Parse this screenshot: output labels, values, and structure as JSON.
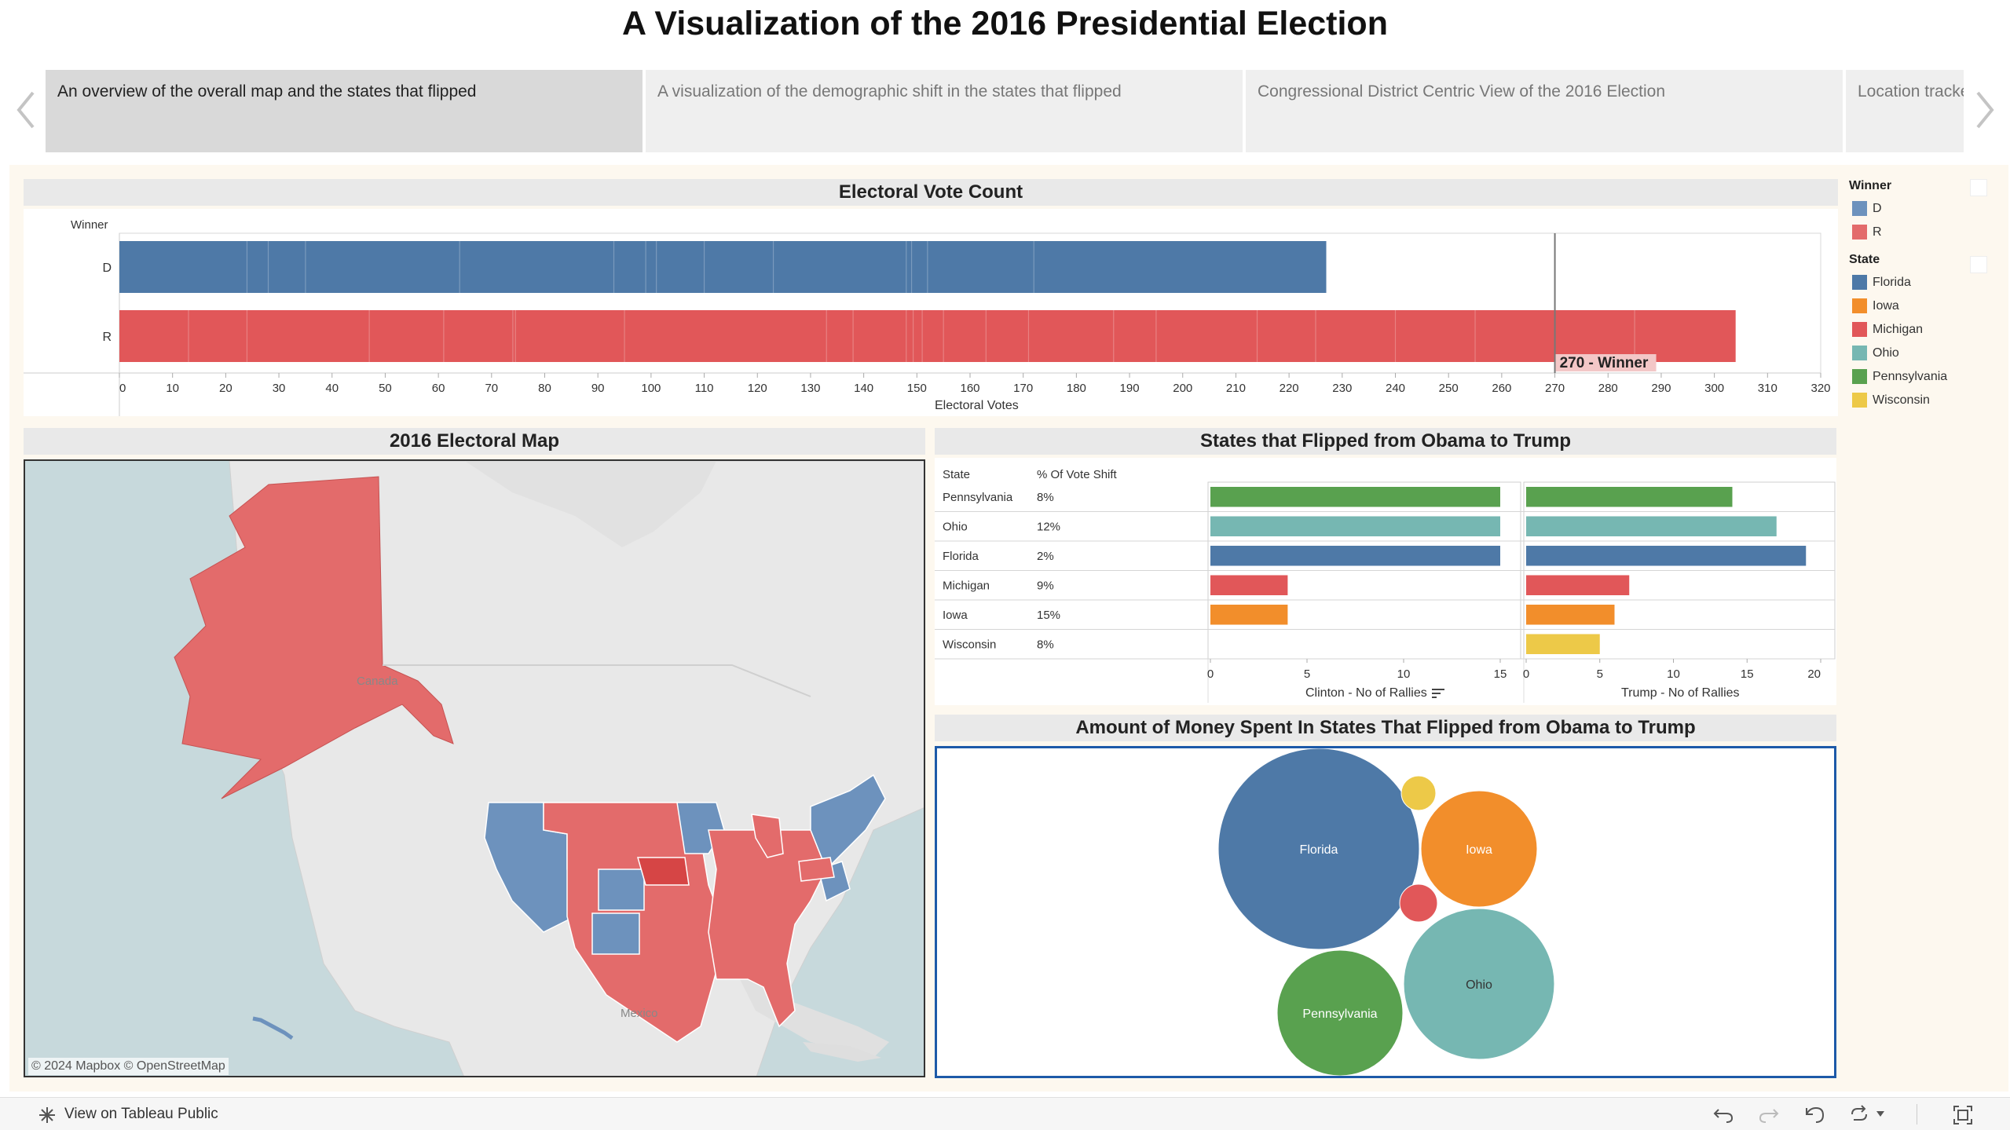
{
  "title": "A Visualization of the 2016 Presidential Election",
  "story_tabs": [
    {
      "label": "An overview of the overall map and the states that flipped",
      "active": true
    },
    {
      "label": "A visualization of the demographic shift in the states that flipped",
      "active": false
    },
    {
      "label": "Congressional District Centric View of the 2016 Election",
      "active": false
    },
    {
      "label": "Location tracker",
      "active": false
    }
  ],
  "colors": {
    "D": "#4e79a7",
    "R": "#e15759",
    "D_light": "#6d92bd",
    "R_light": "#e36b6b",
    "Florida": "#4e79a7",
    "Iowa": "#f28e2b",
    "Michigan": "#e15759",
    "Ohio": "#76b7b2",
    "Pennsylvania": "#59a14f",
    "Wisconsin": "#edc948"
  },
  "legend": {
    "winner_title": "Winner",
    "winner_items": [
      "D",
      "R"
    ],
    "state_title": "State",
    "state_items": [
      "Florida",
      "Iowa",
      "Michigan",
      "Ohio",
      "Pennsylvania",
      "Wisconsin"
    ]
  },
  "electoral_chart": {
    "title": "Electoral Vote Count",
    "row_header": "Winner",
    "xlabel": "Electoral Votes",
    "reference_label": "270 - Winner",
    "chart_data": {
      "type": "bar",
      "categories": [
        "D",
        "R"
      ],
      "values": [
        227,
        304
      ],
      "xlim": [
        0,
        320
      ],
      "xticks": [
        0,
        10,
        20,
        30,
        40,
        50,
        60,
        70,
        80,
        90,
        100,
        110,
        120,
        130,
        140,
        150,
        160,
        170,
        180,
        190,
        200,
        210,
        220,
        230,
        240,
        250,
        260,
        270,
        280,
        290,
        300,
        310,
        320
      ],
      "reference_line": 270
    }
  },
  "map": {
    "title": "2016 Electoral Map",
    "labels": {
      "canada": "Canada",
      "mexico": "Mexico"
    },
    "attribution": "© 2024 Mapbox  © OpenStreetMap"
  },
  "flipped_chart": {
    "title": "States that Flipped from Obama to Trump",
    "col_state": "State",
    "col_shift": "% Of Vote Shift",
    "clinton_label": "Clinton - No of Rallies",
    "trump_label": "Trump - No of Rallies",
    "chart_data": {
      "type": "bar",
      "categories": [
        "Pennsylvania",
        "Ohio",
        "Florida",
        "Michigan",
        "Iowa",
        "Wisconsin"
      ],
      "vote_shift": [
        "8%",
        "12%",
        "2%",
        "9%",
        "15%",
        "8%"
      ],
      "series": [
        {
          "name": "Clinton - No of Rallies",
          "values": [
            15,
            15,
            15,
            4,
            4,
            0
          ]
        },
        {
          "name": "Trump - No of Rallies",
          "values": [
            14,
            17,
            19,
            7,
            6,
            5
          ]
        }
      ],
      "clinton_xlim": [
        0,
        16
      ],
      "clinton_ticks": [
        0,
        5,
        10,
        15
      ],
      "trump_xlim": [
        0,
        20
      ],
      "trump_ticks": [
        0,
        5,
        10,
        15,
        20
      ]
    }
  },
  "bubble_chart": {
    "title": "Amount of Money Spent In States That Flipped from Obama to Trump",
    "chart_data": {
      "type": "bubble",
      "categories": [
        "Florida",
        "Iowa",
        "Ohio",
        "Pennsylvania",
        "Wisconsin",
        "Michigan"
      ],
      "labels": [
        "Florida",
        "Iowa",
        "Ohio",
        "Pennsylvania",
        "",
        ""
      ],
      "relative_size": [
        1.0,
        0.33,
        0.56,
        0.4,
        0.03,
        0.035
      ]
    }
  },
  "toolbar": {
    "view_on": "View on Tableau Public"
  }
}
